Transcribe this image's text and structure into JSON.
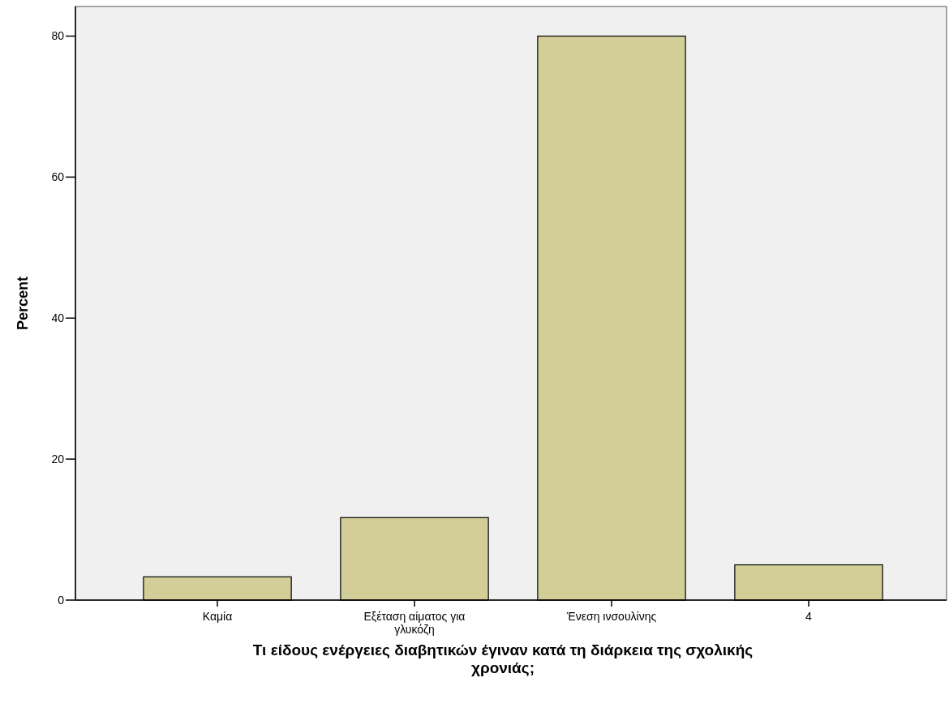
{
  "chart_data": {
    "type": "bar",
    "xlabel": "Τι είδους ενέργειες διαβητικών έγιναν κατά τη διάρκεια της σχολικής χρονιάς;",
    "ylabel": "Percent",
    "categories": [
      "Καμία",
      "Εξέταση αίματος για γλυκόζη",
      "Ένεση ινσουλίνης",
      "4"
    ],
    "values": [
      3.3,
      11.7,
      80,
      5
    ],
    "color": "#d3ce97",
    "ylim": [
      0,
      84.2
    ],
    "yticks": [
      0,
      20,
      40,
      60,
      80
    ],
    "grid": false
  }
}
